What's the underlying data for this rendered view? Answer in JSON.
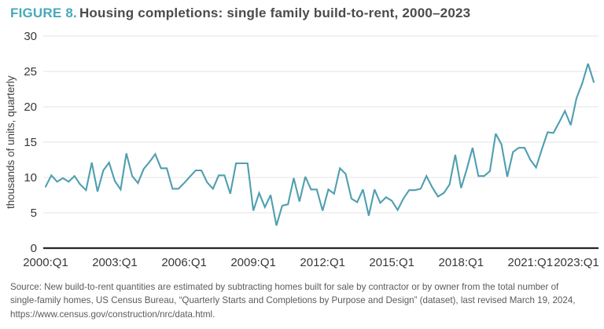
{
  "header": {
    "figure_label": "FIGURE 8.",
    "title": "Housing completions: single family build-to-rent, 2000–2023"
  },
  "colors": {
    "accent_teal": "#47a9bb",
    "line": "#4f9fb0",
    "gridline": "#e3e3e3",
    "axis": "#26262a",
    "tick_text": "#373737",
    "title_text": "#4a4b4d",
    "source_text": "#5b5b5b"
  },
  "chart_data": {
    "type": "line",
    "title": "Housing completions: single family build-to-rent, 2000–2023",
    "xlabel": "",
    "ylabel": "thousands of units, quarterly",
    "ylim": [
      0,
      30
    ],
    "yticks": [
      0,
      5,
      10,
      15,
      20,
      25,
      30
    ],
    "grid": "horizontal",
    "legend": "none",
    "line_color": "#4f9fb0",
    "x_start": "2000:Q1",
    "x_end": "2023:Q4",
    "x_frequency": "quarterly",
    "xticks": [
      {
        "label": "2000:Q1",
        "q": 0
      },
      {
        "label": "2003:Q1",
        "q": 12
      },
      {
        "label": "2006:Q1",
        "q": 24
      },
      {
        "label": "2009:Q1",
        "q": 36
      },
      {
        "label": "2012:Q1",
        "q": 48
      },
      {
        "label": "2015:Q1",
        "q": 60
      },
      {
        "label": "2018:Q1",
        "q": 72
      },
      {
        "label": "2021:Q1",
        "q": 84
      },
      {
        "label": "2023:Q1",
        "q": 92
      }
    ],
    "values": [
      8.7,
      10.3,
      9.4,
      9.9,
      9.4,
      10.2,
      9.0,
      8.2,
      12.1,
      8.0,
      11.0,
      12.1,
      9.5,
      8.3,
      13.4,
      10.2,
      9.2,
      11.2,
      12.2,
      13.3,
      11.3,
      11.3,
      8.4,
      8.4,
      9.2,
      10.1,
      11.0,
      11.0,
      9.3,
      8.4,
      10.3,
      10.3,
      7.7,
      12.0,
      12.0,
      12.0,
      5.3,
      7.8,
      5.8,
      7.5,
      3.2,
      6.0,
      6.2,
      9.9,
      6.6,
      10.1,
      8.3,
      8.3,
      5.3,
      8.3,
      7.7,
      11.3,
      10.5,
      7.0,
      6.5,
      8.3,
      4.6,
      8.3,
      6.4,
      7.2,
      6.7,
      5.4,
      7.0,
      8.2,
      8.2,
      8.4,
      10.2,
      8.6,
      7.3,
      7.8,
      9.0,
      13.2,
      8.5,
      11.2,
      14.2,
      10.2,
      10.2,
      10.9,
      16.2,
      14.7,
      10.1,
      13.6,
      14.2,
      14.2,
      12.5,
      11.4,
      14.0,
      16.4,
      16.3,
      17.8,
      19.4,
      17.4,
      21.2,
      23.3,
      26.1,
      23.5
    ]
  },
  "footer": {
    "lines": [
      "Source: New build-to-rent quantities are estimated by subtracting homes built for sale by contractor or by owner from the total number of",
      "single-family homes, US Census Bureau, “Quarterly Starts and Completions by Purpose and Design” (dataset), last revised March 19, 2024,",
      "https://www.census.gov/construction/nrc/data.html."
    ]
  }
}
